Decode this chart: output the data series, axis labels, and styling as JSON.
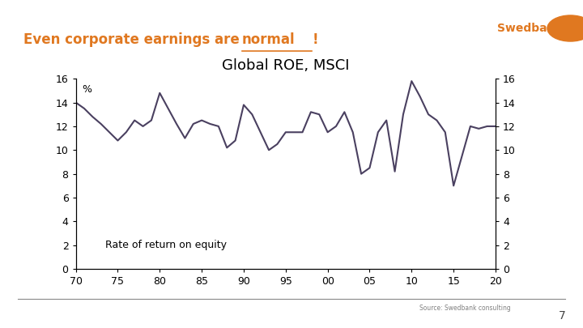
{
  "title": "Global ROE, MSCI",
  "slide_title_part1": "Even corporate earnings are ",
  "slide_title_part2": "normal",
  "slide_title_part3": "!",
  "ylabel_left": "%",
  "annotation": "Rate of return on equity",
  "source_text": "Source: Swedbank consulting",
  "yticks": [
    0,
    2,
    4,
    6,
    8,
    10,
    12,
    14,
    16
  ],
  "ylim": [
    0,
    16
  ],
  "xticks": [
    70,
    75,
    80,
    85,
    90,
    95,
    100,
    105,
    110,
    115,
    120
  ],
  "xlabels": [
    "70",
    "75",
    "80",
    "85",
    "90",
    "95",
    "00",
    "05",
    "10",
    "15",
    "20"
  ],
  "xlim": [
    70,
    120
  ],
  "line_color": "#4a4060",
  "background_color": "#ffffff",
  "slide_title_color": "#e07820",
  "x": [
    70,
    71,
    72,
    73,
    74,
    75,
    76,
    77,
    78,
    79,
    80,
    81,
    82,
    83,
    84,
    85,
    86,
    87,
    88,
    89,
    90,
    91,
    92,
    93,
    94,
    95,
    96,
    97,
    98,
    99,
    100,
    101,
    102,
    103,
    104,
    105,
    106,
    107,
    108,
    109,
    110,
    111,
    112,
    113,
    114,
    115,
    116,
    117,
    118,
    119,
    120
  ],
  "y": [
    14.0,
    13.5,
    12.8,
    12.2,
    11.5,
    10.8,
    11.5,
    12.5,
    12.0,
    12.5,
    14.8,
    13.5,
    12.2,
    11.0,
    12.2,
    12.5,
    12.2,
    12.0,
    10.2,
    10.8,
    13.8,
    13.0,
    11.5,
    10.0,
    10.5,
    11.5,
    11.5,
    11.5,
    13.2,
    13.0,
    11.5,
    12.0,
    13.2,
    11.5,
    8.0,
    8.5,
    11.5,
    12.5,
    8.2,
    13.0,
    15.8,
    14.5,
    13.0,
    12.5,
    11.5,
    7.0,
    9.5,
    12.0,
    11.8,
    12.0,
    12.0
  ],
  "page_number": "7"
}
